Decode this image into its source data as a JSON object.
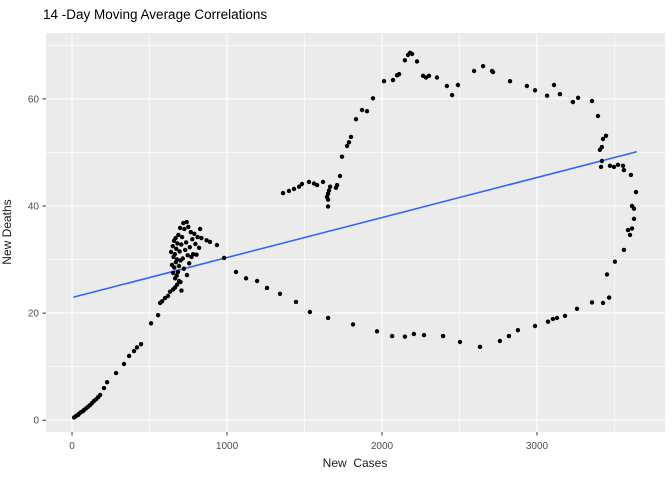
{
  "page": {
    "background": "#FFFFFF"
  },
  "chart_data": {
    "type": "scatter",
    "title": "14 -Day Moving Average Correlations",
    "xlabel": "New  Cases",
    "ylabel": "New Deaths",
    "legend": "none",
    "grid": true,
    "x_major_ticks": [
      0,
      1000,
      2000,
      3000
    ],
    "x_minor_ticks": [
      500,
      1500,
      2500,
      3500
    ],
    "y_major_ticks": [
      0,
      20,
      40,
      60
    ],
    "y_minor_ticks": [
      10,
      30,
      50,
      70
    ],
    "xlim": [
      -168,
      3826
    ],
    "ylim": [
      -2.2,
      72.3
    ],
    "colors": {
      "panel_background": "#EBEBEB",
      "grid_major": "#FFFFFF",
      "grid_minor": "#FFFFFF",
      "point": "#000000",
      "trend": "#3366FF",
      "tick_mark": "#333333",
      "tick_label": "#4D4D4D"
    },
    "trend_line": {
      "x_start": 13,
      "y_start": 23.0,
      "x_end": 3640,
      "y_end": 50.1
    },
    "points": [
      [
        13,
        0.5
      ],
      [
        26,
        0.8
      ],
      [
        39,
        1.0
      ],
      [
        45,
        1.2
      ],
      [
        58,
        1.5
      ],
      [
        71,
        1.7
      ],
      [
        77,
        1.9
      ],
      [
        90,
        2.2
      ],
      [
        103,
        2.5
      ],
      [
        116,
        2.8
      ],
      [
        129,
        3.2
      ],
      [
        142,
        3.6
      ],
      [
        155,
        3.9
      ],
      [
        168,
        4.3
      ],
      [
        181,
        4.7
      ],
      [
        206,
        6.0
      ],
      [
        226,
        7.1
      ],
      [
        284,
        8.8
      ],
      [
        335,
        10.5
      ],
      [
        368,
        12.0
      ],
      [
        400,
        12.9
      ],
      [
        419,
        13.6
      ],
      [
        445,
        14.2
      ],
      [
        510,
        18.1
      ],
      [
        555,
        19.6
      ],
      [
        568,
        21.9
      ],
      [
        581,
        22.2
      ],
      [
        600,
        22.8
      ],
      [
        619,
        23.2
      ],
      [
        632,
        24.0
      ],
      [
        652,
        24.4
      ],
      [
        665,
        24.8
      ],
      [
        678,
        25.3
      ],
      [
        690,
        26.0
      ],
      [
        700,
        25.8
      ],
      [
        706,
        24.2
      ],
      [
        639,
        31.4
      ],
      [
        645,
        29.0
      ],
      [
        650,
        32.5
      ],
      [
        652,
        27.5
      ],
      [
        655,
        30.5
      ],
      [
        658,
        33.5
      ],
      [
        660,
        28.5
      ],
      [
        663,
        31.0
      ],
      [
        665,
        26.5
      ],
      [
        668,
        34.0
      ],
      [
        670,
        29.5
      ],
      [
        673,
        32.0
      ],
      [
        675,
        27.0
      ],
      [
        678,
        30.0
      ],
      [
        680,
        33.0
      ],
      [
        684,
        27.7
      ],
      [
        686,
        34.6
      ],
      [
        690,
        28.8
      ],
      [
        694,
        31.5
      ],
      [
        697,
        35.9
      ],
      [
        700,
        29.8
      ],
      [
        705,
        32.8
      ],
      [
        710,
        34.2
      ],
      [
        715,
        30.2
      ],
      [
        718,
        36.8
      ],
      [
        722,
        28.3
      ],
      [
        725,
        35.7
      ],
      [
        730,
        31.8
      ],
      [
        736,
        33.2
      ],
      [
        740,
        37.0
      ],
      [
        742,
        27.1
      ],
      [
        746,
        30.8
      ],
      [
        750,
        36.1
      ],
      [
        756,
        29.3
      ],
      [
        760,
        32.3
      ],
      [
        766,
        35.1
      ],
      [
        771,
        30.5
      ],
      [
        776,
        33.8
      ],
      [
        781,
        31.0
      ],
      [
        789,
        34.8
      ],
      [
        796,
        32.9
      ],
      [
        803,
        30.9
      ],
      [
        810,
        34.2
      ],
      [
        820,
        32.2
      ],
      [
        826,
        35.7
      ],
      [
        835,
        34.0
      ],
      [
        868,
        33.6
      ],
      [
        890,
        33.3
      ],
      [
        935,
        32.7
      ],
      [
        981,
        30.3
      ],
      [
        1058,
        27.7
      ],
      [
        1123,
        26.5
      ],
      [
        1194,
        26.0
      ],
      [
        1258,
        24.7
      ],
      [
        1342,
        23.6
      ],
      [
        1445,
        22.1
      ],
      [
        1535,
        20.2
      ],
      [
        1652,
        19.1
      ],
      [
        1813,
        17.9
      ],
      [
        1968,
        16.6
      ],
      [
        2065,
        15.7
      ],
      [
        2148,
        15.6
      ],
      [
        2206,
        16.1
      ],
      [
        2271,
        15.9
      ],
      [
        2394,
        15.7
      ],
      [
        2503,
        14.6
      ],
      [
        2632,
        13.7
      ],
      [
        2761,
        14.8
      ],
      [
        2819,
        15.7
      ],
      [
        2877,
        16.8
      ],
      [
        2987,
        17.6
      ],
      [
        3071,
        18.4
      ],
      [
        3103,
        18.9
      ],
      [
        3129,
        19.1
      ],
      [
        3181,
        19.5
      ],
      [
        3258,
        20.8
      ],
      [
        3355,
        22.0
      ],
      [
        3426,
        21.9
      ],
      [
        3465,
        22.9
      ],
      [
        3452,
        27.2
      ],
      [
        3503,
        29.6
      ],
      [
        3561,
        31.8
      ],
      [
        3587,
        35.5
      ],
      [
        3600,
        34.6
      ],
      [
        3613,
        35.8
      ],
      [
        3626,
        37.6
      ],
      [
        3626,
        39.5
      ],
      [
        3613,
        40.0
      ],
      [
        3639,
        42.6
      ],
      [
        3606,
        45.8
      ],
      [
        3561,
        46.7
      ],
      [
        3555,
        47.5
      ],
      [
        3523,
        47.7
      ],
      [
        3497,
        47.3
      ],
      [
        3471,
        47.5
      ],
      [
        3413,
        47.3
      ],
      [
        3419,
        48.4
      ],
      [
        3406,
        50.5
      ],
      [
        3419,
        51.0
      ],
      [
        3426,
        52.5
      ],
      [
        3445,
        53.1
      ],
      [
        3394,
        56.8
      ],
      [
        3355,
        59.6
      ],
      [
        3265,
        60.2
      ],
      [
        3232,
        59.4
      ],
      [
        3148,
        60.9
      ],
      [
        3110,
        62.6
      ],
      [
        3065,
        60.6
      ],
      [
        2987,
        61.6
      ],
      [
        2935,
        62.4
      ],
      [
        2826,
        63.3
      ],
      [
        2716,
        65.0
      ],
      [
        2710,
        65.2
      ],
      [
        2652,
        66.1
      ],
      [
        2594,
        65.2
      ],
      [
        2490,
        62.6
      ],
      [
        2452,
        60.7
      ],
      [
        2419,
        62.4
      ],
      [
        2355,
        64.0
      ],
      [
        2303,
        64.3
      ],
      [
        2284,
        64.0
      ],
      [
        2265,
        64.3
      ],
      [
        2226,
        67.0
      ],
      [
        2194,
        68.4
      ],
      [
        2181,
        68.6
      ],
      [
        2168,
        68.2
      ],
      [
        2148,
        67.2
      ],
      [
        2110,
        64.6
      ],
      [
        2097,
        64.4
      ],
      [
        2071,
        63.5
      ],
      [
        2013,
        63.3
      ],
      [
        1942,
        60.1
      ],
      [
        1903,
        57.7
      ],
      [
        1871,
        57.9
      ],
      [
        1832,
        56.2
      ],
      [
        1800,
        52.9
      ],
      [
        1787,
        51.9
      ],
      [
        1774,
        51.2
      ],
      [
        1742,
        49.2
      ],
      [
        1729,
        45.6
      ],
      [
        1710,
        43.9
      ],
      [
        1703,
        43.4
      ],
      [
        1361,
        42.4
      ],
      [
        1400,
        42.8
      ],
      [
        1432,
        43.2
      ],
      [
        1465,
        43.6
      ],
      [
        1484,
        44.1
      ],
      [
        1529,
        44.5
      ],
      [
        1561,
        44.2
      ],
      [
        1581,
        43.9
      ],
      [
        1619,
        44.5
      ],
      [
        1645,
        41.7
      ],
      [
        1652,
        42.3
      ],
      [
        1652,
        41.2
      ],
      [
        1652,
        39.9
      ],
      [
        1658,
        42.9
      ],
      [
        1665,
        43.6
      ]
    ]
  }
}
